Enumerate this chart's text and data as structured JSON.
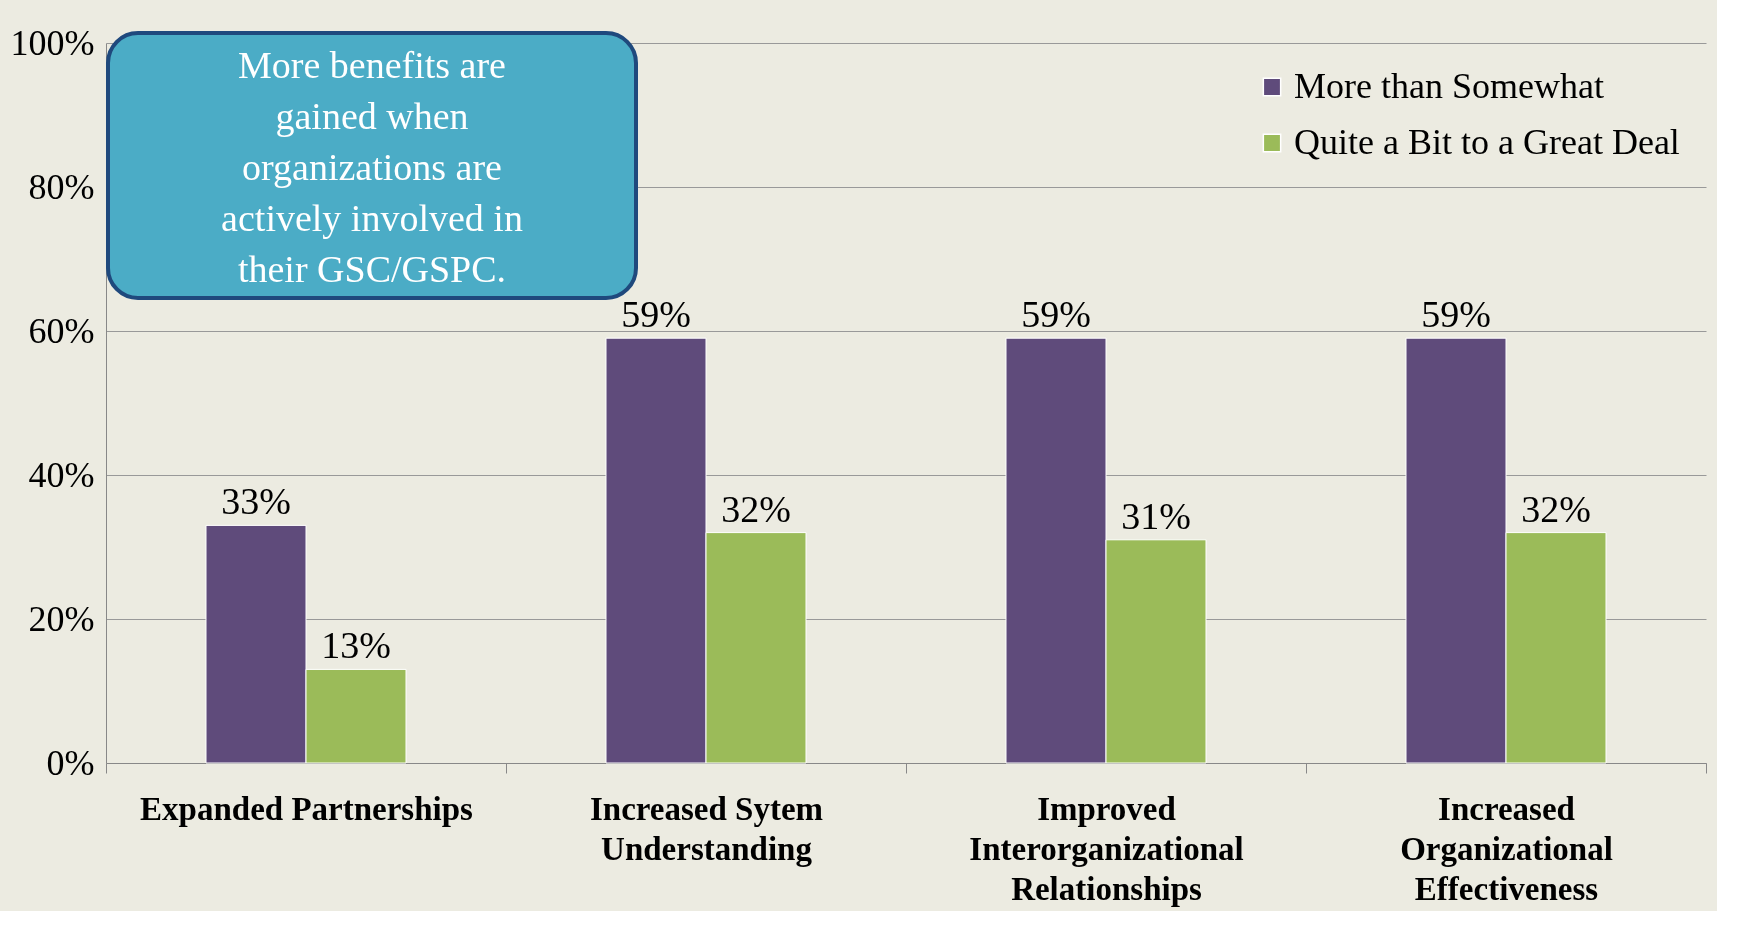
{
  "chart_data": {
    "type": "bar",
    "categories": [
      "Expanded Partnerships",
      "Increased Sytem Understanding",
      "Improved Interorganizational Relationships",
      "Increased Organizational Effectiveness"
    ],
    "series": [
      {
        "name": "More than Somewhat",
        "color": "#5f4b7b",
        "values": [
          33,
          59,
          59,
          59
        ],
        "value_labels": [
          "33%",
          "59%",
          "59%",
          "59%"
        ]
      },
      {
        "name": "Quite a Bit to a Great Deal",
        "color": "#9bbb59",
        "values": [
          13,
          32,
          31,
          32
        ],
        "value_labels": [
          "13%",
          "32%",
          "31%",
          "32%"
        ]
      }
    ],
    "ylim": [
      0,
      100
    ],
    "yticks": [
      {
        "value": 0,
        "label": "0%"
      },
      {
        "value": 20,
        "label": "20%"
      },
      {
        "value": 40,
        "label": "40%"
      },
      {
        "value": 60,
        "label": "60%"
      },
      {
        "value": 80,
        "label": "80%"
      },
      {
        "value": 100,
        "label": "100%"
      }
    ],
    "data_labels": true,
    "grid": "y",
    "legend": "top right",
    "annotations": [
      "More benefits are gained when organizations are actively involved in their GSC/GSPC."
    ]
  }
}
